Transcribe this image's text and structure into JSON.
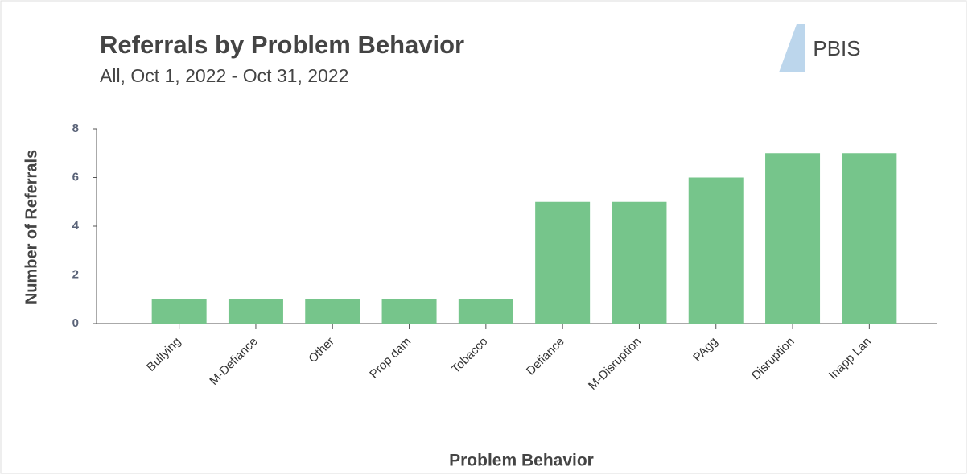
{
  "logo": "PBIS",
  "chart_data": {
    "type": "bar",
    "title": "Referrals by Problem Behavior",
    "subtitle": "All, Oct 1, 2022 - Oct 31, 2022",
    "x_label": "Problem Behavior",
    "y_label": "Number of Referrals",
    "categories": [
      "Bullying",
      "M-Defiance",
      "Other",
      "Prop dam",
      "Tobacco",
      "Defiance",
      "M-Disruption",
      "PAgg",
      "Disruption",
      "Inapp Lan"
    ],
    "values": [
      1,
      1,
      1,
      1,
      1,
      5,
      5,
      6,
      7,
      7
    ],
    "color": "#76c58b",
    "ylim": [
      0,
      8
    ],
    "yticks": [
      0,
      2,
      4,
      6,
      8
    ],
    "grid": false
  }
}
